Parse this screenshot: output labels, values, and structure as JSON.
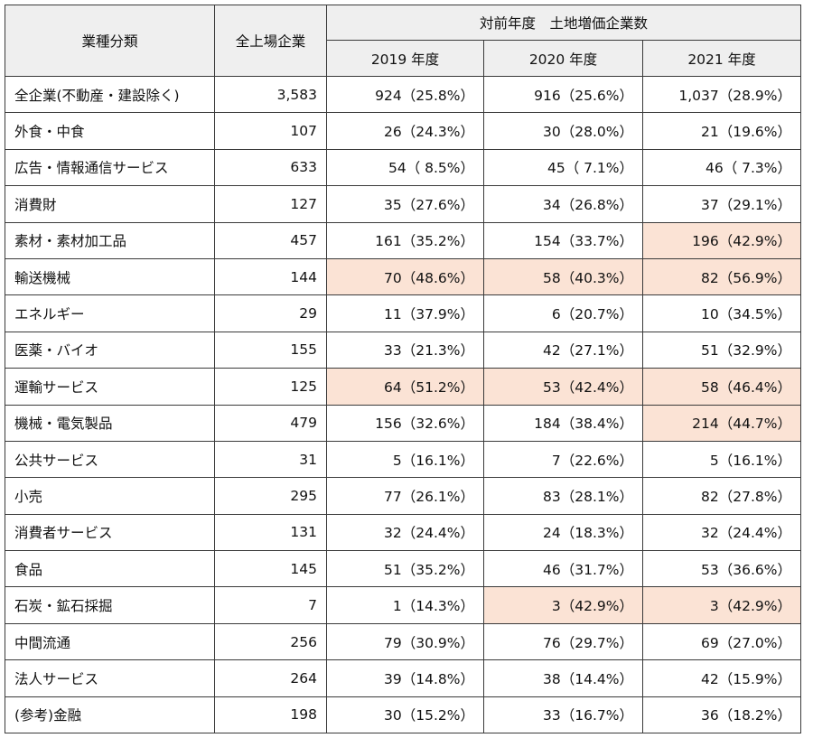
{
  "headers": {
    "category": "業種分類",
    "all_listed": "全上場企業",
    "group": "対前年度　土地増価企業数",
    "years": [
      "2019 年度",
      "2020 年度",
      "2021 年度"
    ]
  },
  "highlight_color": "#fbe3d5",
  "rows": [
    {
      "name": "全企業(不動産・建設除く)",
      "total": "3,583",
      "cells": [
        {
          "text": "924（25.8%）",
          "hl": false
        },
        {
          "text": "916（25.6%）",
          "hl": false
        },
        {
          "text": "1,037（28.9%）",
          "hl": false
        }
      ]
    },
    {
      "name": "外食・中食",
      "total": "107",
      "cells": [
        {
          "text": "26（24.3%）",
          "hl": false
        },
        {
          "text": "30（28.0%）",
          "hl": false
        },
        {
          "text": "21（19.6%）",
          "hl": false
        }
      ]
    },
    {
      "name": "広告・情報通信サービス",
      "total": "633",
      "cells": [
        {
          "text": "54（ 8.5%）",
          "hl": false
        },
        {
          "text": "45（ 7.1%）",
          "hl": false
        },
        {
          "text": "46（ 7.3%）",
          "hl": false
        }
      ]
    },
    {
      "name": "消費財",
      "total": "127",
      "cells": [
        {
          "text": "35（27.6%）",
          "hl": false
        },
        {
          "text": "34（26.8%）",
          "hl": false
        },
        {
          "text": "37（29.1%）",
          "hl": false
        }
      ]
    },
    {
      "name": "素材・素材加工品",
      "total": "457",
      "cells": [
        {
          "text": "161（35.2%）",
          "hl": false
        },
        {
          "text": "154（33.7%）",
          "hl": false
        },
        {
          "text": "196（42.9%）",
          "hl": true
        }
      ]
    },
    {
      "name": "輸送機械",
      "total": "144",
      "cells": [
        {
          "text": "70（48.6%）",
          "hl": true
        },
        {
          "text": "58（40.3%）",
          "hl": true
        },
        {
          "text": "82（56.9%）",
          "hl": true
        }
      ]
    },
    {
      "name": "エネルギー",
      "total": "29",
      "cells": [
        {
          "text": "11（37.9%）",
          "hl": false
        },
        {
          "text": "6（20.7%）",
          "hl": false
        },
        {
          "text": "10（34.5%）",
          "hl": false
        }
      ]
    },
    {
      "name": "医薬・バイオ",
      "total": "155",
      "cells": [
        {
          "text": "33（21.3%）",
          "hl": false
        },
        {
          "text": "42（27.1%）",
          "hl": false
        },
        {
          "text": "51（32.9%）",
          "hl": false
        }
      ]
    },
    {
      "name": "運輸サービス",
      "total": "125",
      "cells": [
        {
          "text": "64（51.2%）",
          "hl": true
        },
        {
          "text": "53（42.4%）",
          "hl": true
        },
        {
          "text": "58（46.4%）",
          "hl": true
        }
      ]
    },
    {
      "name": "機械・電気製品",
      "total": "479",
      "cells": [
        {
          "text": "156（32.6%）",
          "hl": false
        },
        {
          "text": "184（38.4%）",
          "hl": false
        },
        {
          "text": "214（44.7%）",
          "hl": true
        }
      ]
    },
    {
      "name": "公共サービス",
      "total": "31",
      "cells": [
        {
          "text": "5（16.1%）",
          "hl": false
        },
        {
          "text": "7（22.6%）",
          "hl": false
        },
        {
          "text": "5（16.1%）",
          "hl": false
        }
      ]
    },
    {
      "name": "小売",
      "total": "295",
      "cells": [
        {
          "text": "77（26.1%）",
          "hl": false
        },
        {
          "text": "83（28.1%）",
          "hl": false
        },
        {
          "text": "82（27.8%）",
          "hl": false
        }
      ]
    },
    {
      "name": "消費者サービス",
      "total": "131",
      "cells": [
        {
          "text": "32（24.4%）",
          "hl": false
        },
        {
          "text": "24（18.3%）",
          "hl": false
        },
        {
          "text": "32（24.4%）",
          "hl": false
        }
      ]
    },
    {
      "name": "食品",
      "total": "145",
      "cells": [
        {
          "text": "51（35.2%）",
          "hl": false
        },
        {
          "text": "46（31.7%）",
          "hl": false
        },
        {
          "text": "53（36.6%）",
          "hl": false
        }
      ]
    },
    {
      "name": "石炭・鉱石採掘",
      "total": "7",
      "cells": [
        {
          "text": "1（14.3%）",
          "hl": false
        },
        {
          "text": "3（42.9%）",
          "hl": true
        },
        {
          "text": "3（42.9%）",
          "hl": true
        }
      ]
    },
    {
      "name": "中間流通",
      "total": "256",
      "cells": [
        {
          "text": "79（30.9%）",
          "hl": false
        },
        {
          "text": "76（29.7%）",
          "hl": false
        },
        {
          "text": "69（27.0%）",
          "hl": false
        }
      ]
    },
    {
      "name": "法人サービス",
      "total": "264",
      "cells": [
        {
          "text": "39（14.8%）",
          "hl": false
        },
        {
          "text": "38（14.4%）",
          "hl": false
        },
        {
          "text": "42（15.9%）",
          "hl": false
        }
      ]
    },
    {
      "name": "(参考)金融",
      "total": "198",
      "cells": [
        {
          "text": "30（15.2%）",
          "hl": false
        },
        {
          "text": "33（16.7%）",
          "hl": false
        },
        {
          "text": "36（18.2%）",
          "hl": false
        }
      ]
    }
  ]
}
